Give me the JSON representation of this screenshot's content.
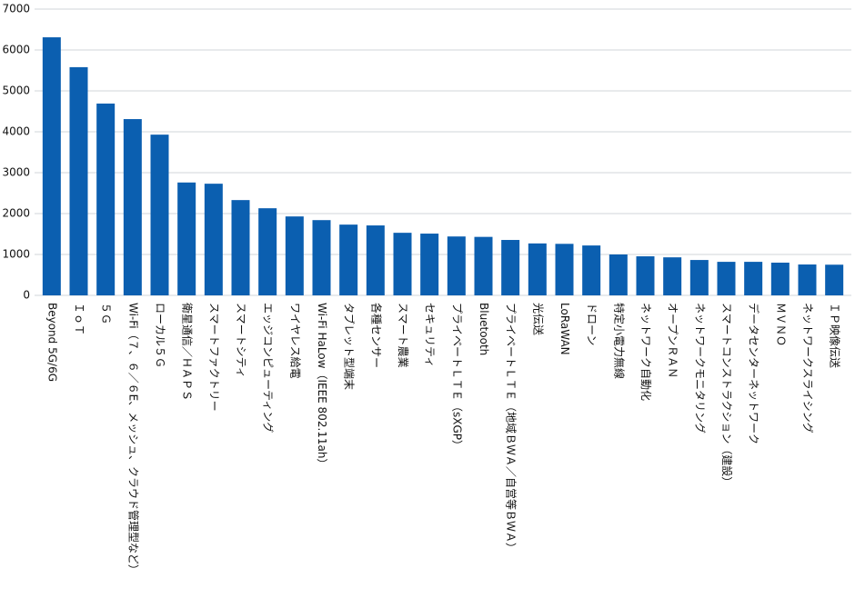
{
  "chart_data": {
    "type": "bar",
    "categories": [
      "Beyond 5G/6G",
      "ＩｏＴ",
      "５Ｇ",
      "Wi-Fi（７、６／６E、メッシュ、クラウド管理型など）",
      "ローカル５Ｇ",
      "衛星通信／ＨＡＰＳ",
      "スマートファクトリー",
      "スマートシティ",
      "エッジコンピューティング",
      "ワイヤレス給電",
      "Wi-Fi HaLow（IEEE 802.11ah）",
      "タブレット型端末",
      "各種センサー",
      "スマート農業",
      "セキュリティ",
      "プライベートＬＴＥ（sXGP）",
      "Bluetooth",
      "プライベートＬＴＥ（地域ＢＷＡ／自営等ＢＷＡ）",
      "光伝送",
      "LoRaWAN",
      "ドローン",
      "特定小電力無線",
      "ネットワーク自動化",
      "オープンＲＡＮ",
      "ネットワークモニタリング",
      "スマートコンストラクション（建設）",
      "データセンターネットワーク",
      "ＭＶＮＯ",
      "ネットワークスライシング",
      "ＩＰ映像伝送"
    ],
    "values": [
      6310,
      5580,
      4690,
      4310,
      3930,
      2760,
      2730,
      2330,
      2130,
      1930,
      1840,
      1730,
      1710,
      1530,
      1510,
      1440,
      1430,
      1355,
      1270,
      1260,
      1220,
      1000,
      955,
      930,
      865,
      820,
      820,
      800,
      755,
      750
    ],
    "color": "#0b5fb0",
    "ylim": [
      0,
      7000
    ],
    "yticks": [
      0,
      1000,
      2000,
      3000,
      4000,
      5000,
      6000,
      7000
    ],
    "grid": true
  }
}
